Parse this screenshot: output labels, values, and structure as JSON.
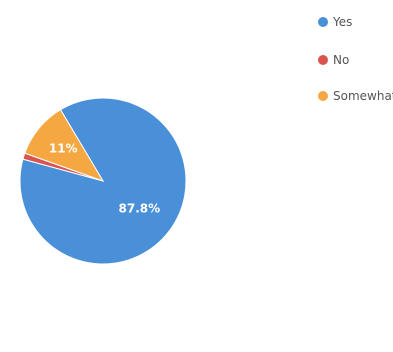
{
  "chart_data": {
    "type": "pie",
    "title": "",
    "slices": [
      {
        "label": "Yes",
        "value": 87.8,
        "color": "#4a90d9",
        "data_label": "87.8%"
      },
      {
        "label": "No",
        "value": 1.2,
        "color": "#d9534f",
        "data_label": ""
      },
      {
        "label": "Somewhat",
        "value": 11,
        "color": "#f5a742",
        "data_label": "11%"
      }
    ],
    "legend": {
      "placement": "top-right",
      "items": [
        "Yes",
        "No",
        "Somewhat"
      ]
    }
  }
}
